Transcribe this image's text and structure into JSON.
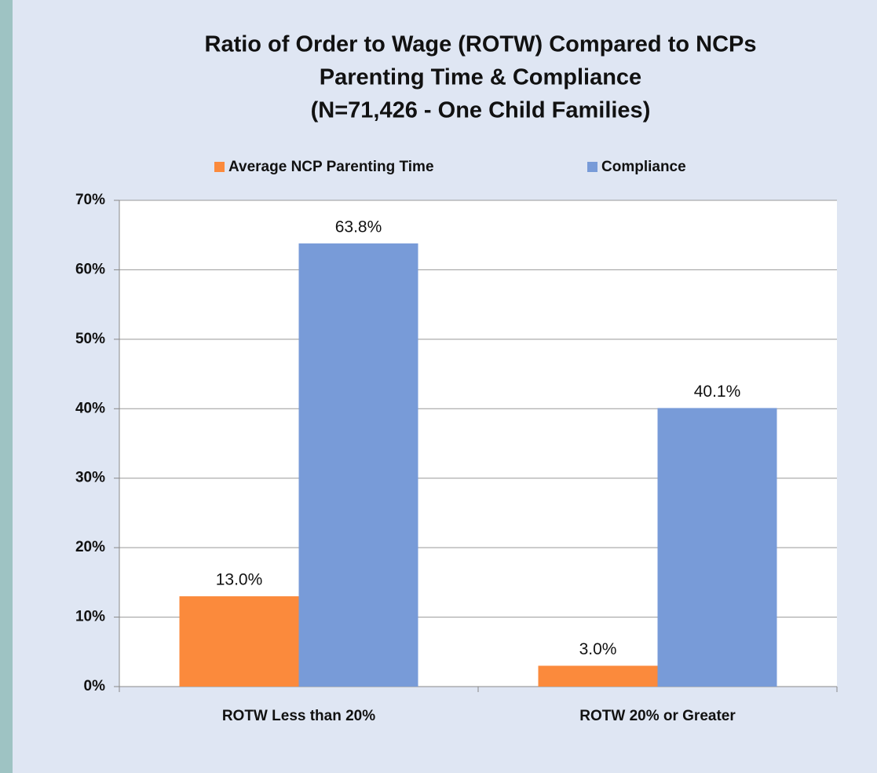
{
  "chart_data": {
    "type": "bar",
    "title": [
      "Ratio of Order to Wage (ROTW) Compared to NCPs",
      "Parenting Time & Compliance",
      "(N=71,426 - One Child Families)"
    ],
    "categories": [
      "ROTW Less than 20%",
      "ROTW 20% or Greater"
    ],
    "series": [
      {
        "name": "Average NCP Parenting Time",
        "color": "#fb8a3c",
        "values": [
          13.0,
          3.0
        ],
        "value_labels": [
          "13.0%",
          "3.0%"
        ]
      },
      {
        "name": "Compliance",
        "color": "#789bd8",
        "values": [
          63.8,
          40.1
        ],
        "value_labels": [
          "63.8%",
          "40.1%"
        ]
      }
    ],
    "ylim": [
      0,
      70
    ],
    "yticks": [
      {
        "value": 0,
        "label": "0%"
      },
      {
        "value": 10,
        "label": "10%"
      },
      {
        "value": 20,
        "label": "20%"
      },
      {
        "value": 30,
        "label": "30%"
      },
      {
        "value": 40,
        "label": "40%"
      },
      {
        "value": 50,
        "label": "50%"
      },
      {
        "value": 60,
        "label": "60%"
      },
      {
        "value": 70,
        "label": "70%"
      }
    ],
    "grid": true,
    "legend": "top"
  }
}
